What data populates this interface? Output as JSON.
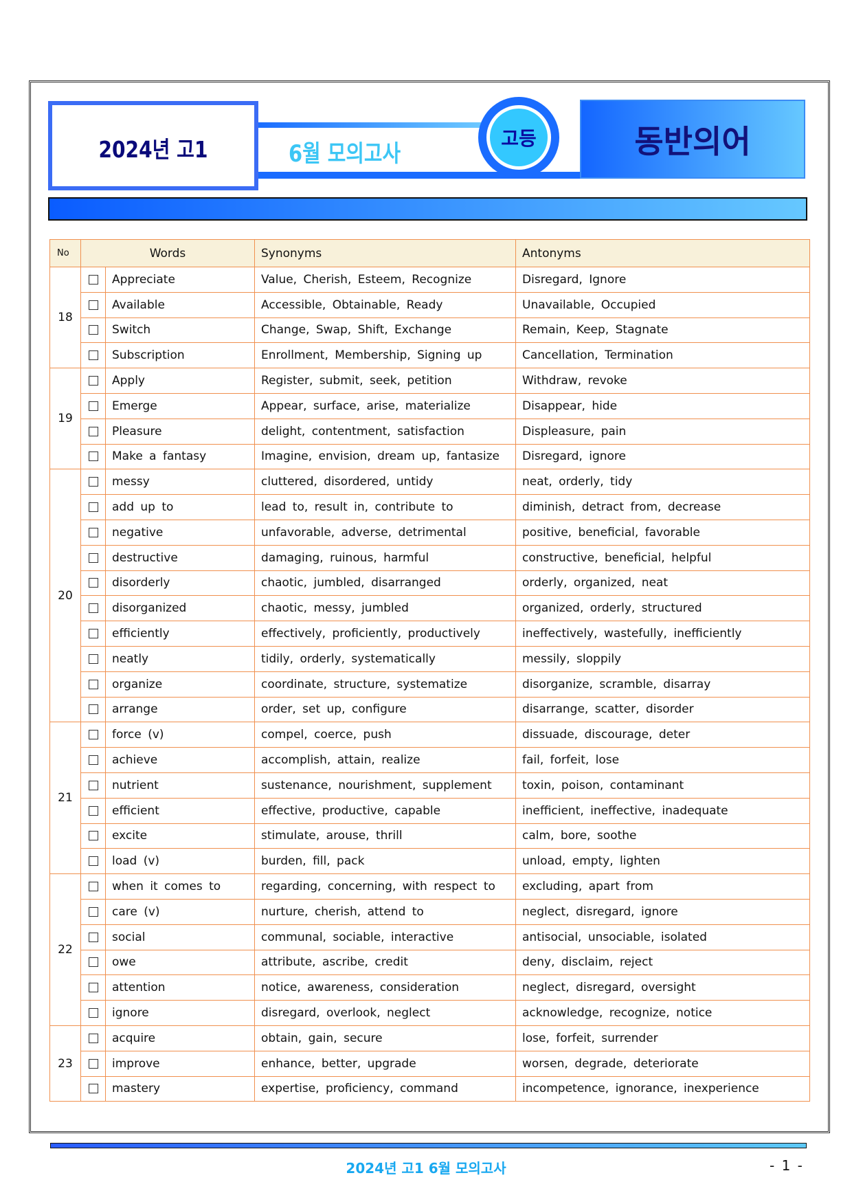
{
  "header": {
    "year_grade": "2024년 고1",
    "exam": "6월 모의고사",
    "badge": "고등",
    "title": "동반의어"
  },
  "table": {
    "headers": {
      "no": "No",
      "words": "Words",
      "synonyms": "Synonyms",
      "antonyms": "Antonyms"
    },
    "groups": [
      {
        "no": "18",
        "rows": [
          [
            "Appreciate",
            "Value, Cherish, Esteem, Recognize",
            "Disregard, Ignore"
          ],
          [
            "Available",
            "Accessible, Obtainable, Ready",
            "Unavailable, Occupied"
          ],
          [
            "Switch",
            "Change, Swap, Shift, Exchange",
            "Remain, Keep, Stagnate"
          ],
          [
            "Subscription",
            "Enrollment, Membership, Signing up",
            "Cancellation, Termination"
          ]
        ]
      },
      {
        "no": "19",
        "rows": [
          [
            "Apply",
            "Register, submit, seek, petition",
            "Withdraw, revoke"
          ],
          [
            "Emerge",
            "Appear, surface, arise, materialize",
            "Disappear, hide"
          ],
          [
            "Pleasure",
            "delight, contentment, satisfaction",
            "Displeasure, pain"
          ],
          [
            "Make a fantasy",
            "Imagine, envision, dream up, fantasize",
            "Disregard, ignore"
          ]
        ]
      },
      {
        "no": "20",
        "rows": [
          [
            "messy",
            "cluttered, disordered, untidy",
            "neat, orderly, tidy"
          ],
          [
            "add up to",
            "lead to, result in, contribute to",
            "diminish, detract from, decrease"
          ],
          [
            "negative",
            "unfavorable, adverse, detrimental",
            "positive, beneficial, favorable"
          ],
          [
            "destructive",
            "damaging, ruinous, harmful",
            "constructive, beneficial, helpful"
          ],
          [
            "disorderly",
            "chaotic, jumbled, disarranged",
            "orderly, organized, neat"
          ],
          [
            "disorganized",
            "chaotic, messy, jumbled",
            "organized, orderly, structured"
          ],
          [
            "efficiently",
            "effectively, proficiently, productively",
            "ineffectively, wastefully, inefficiently"
          ],
          [
            "neatly",
            "tidily, orderly, systematically",
            "messily, sloppily"
          ],
          [
            "organize",
            "coordinate, structure, systematize",
            "disorganize, scramble, disarray"
          ],
          [
            "arrange",
            "order, set up, configure",
            "disarrange, scatter, disorder"
          ]
        ]
      },
      {
        "no": "21",
        "rows": [
          [
            "force (v)",
            "compel, coerce, push",
            "dissuade, discourage, deter"
          ],
          [
            "achieve",
            "accomplish, attain, realize",
            "fail, forfeit, lose"
          ],
          [
            "nutrient",
            "sustenance, nourishment, supplement",
            "toxin, poison, contaminant"
          ],
          [
            "efficient",
            "effective, productive, capable",
            "inefficient, ineffective, inadequate"
          ],
          [
            "excite",
            "stimulate, arouse, thrill",
            "calm, bore, soothe"
          ],
          [
            "load (v)",
            "burden, fill, pack",
            "unload, empty, lighten"
          ]
        ]
      },
      {
        "no": "22",
        "rows": [
          [
            "when it comes to",
            "regarding, concerning, with respect to",
            "excluding, apart from"
          ],
          [
            "care (v)",
            "nurture, cherish, attend to",
            "neglect, disregard, ignore"
          ],
          [
            "social",
            "communal, sociable, interactive",
            "antisocial, unsociable, isolated"
          ],
          [
            "owe",
            "attribute, ascribe, credit",
            "deny, disclaim, reject"
          ],
          [
            "attention",
            "notice, awareness, consideration",
            "neglect, disregard, oversight"
          ],
          [
            "ignore",
            "disregard, overlook, neglect",
            "acknowledge, recognize, notice"
          ]
        ]
      },
      {
        "no": "23",
        "rows": [
          [
            "acquire",
            "obtain, gain, secure",
            "lose, forfeit, surrender"
          ],
          [
            "improve",
            "enhance, better, upgrade",
            "worsen, degrade, deteriorate"
          ],
          [
            "mastery",
            "expertise, proficiency, command",
            "incompetence, ignorance, inexperience"
          ]
        ]
      }
    ]
  },
  "footer": {
    "text": "2024년 고1 6월 모의고사",
    "page": "- 1 -"
  }
}
